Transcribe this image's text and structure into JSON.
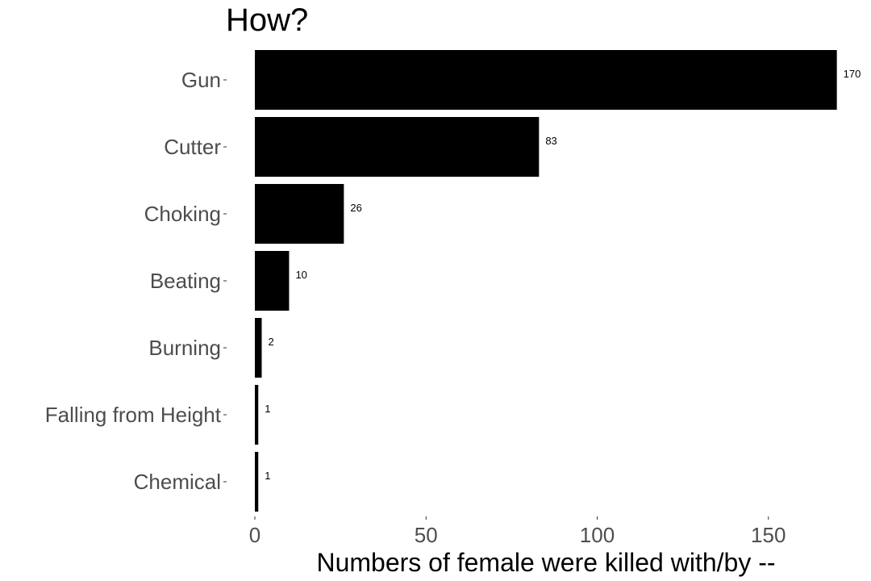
{
  "chart_data": {
    "type": "bar",
    "orientation": "horizontal",
    "title": "How?",
    "xlabel": "Numbers of female were killed with/by --",
    "ylabel": "",
    "categories": [
      "Gun",
      "Cutter",
      "Choking",
      "Beating",
      "Burning",
      "Falling from Height",
      "Chemical"
    ],
    "values": [
      170,
      83,
      26,
      10,
      2,
      1,
      1
    ],
    "data_labels": [
      "170",
      "83",
      "26",
      "10",
      "2",
      "1",
      "1"
    ],
    "x_ticks": [
      "0",
      "50",
      "100",
      "150"
    ],
    "xlim": [
      0,
      170
    ],
    "grid": false,
    "legend": "none",
    "bar_color": "#000000"
  }
}
